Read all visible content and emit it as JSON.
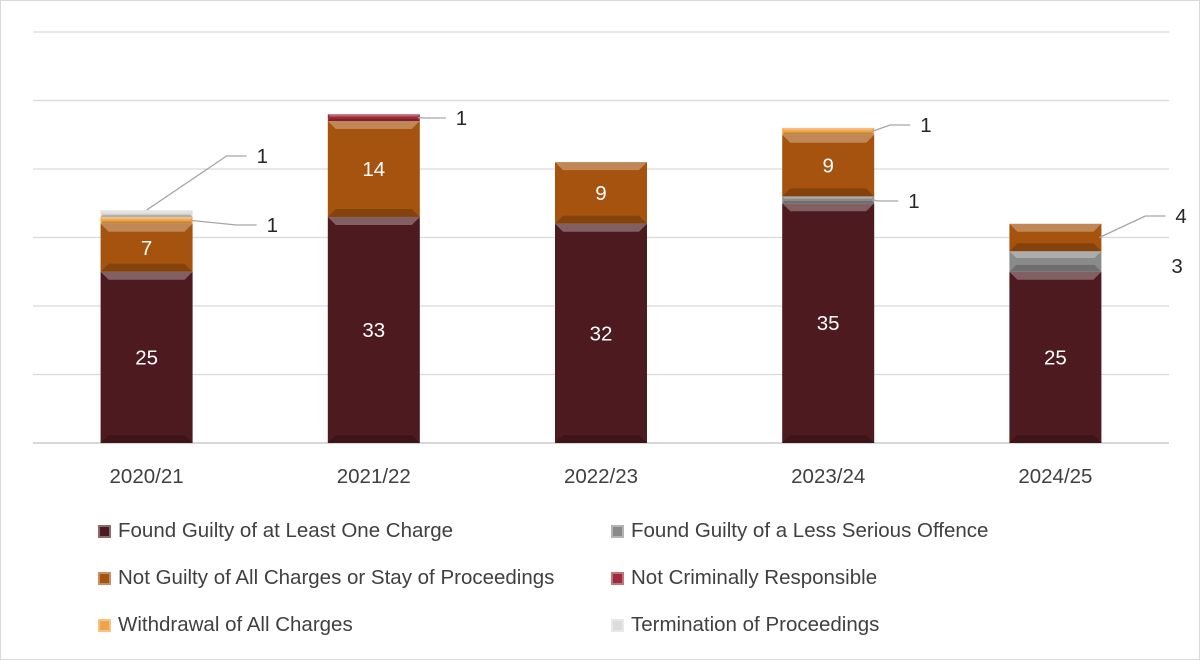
{
  "chart_data": {
    "type": "bar",
    "stacked": true,
    "categories": [
      "2020/21",
      "2021/22",
      "2022/23",
      "2023/24",
      "2024/25"
    ],
    "ylim": [
      0,
      60
    ],
    "grid": true,
    "y_tick_step": 10,
    "legend_placement": "bottom",
    "series": [
      {
        "name": "Found Guilty of at Least One Charge",
        "color": "#4d1a1f",
        "values": [
          25,
          33,
          32,
          35,
          25
        ]
      },
      {
        "name": "Found Guilty of a Less Serious Offence",
        "color": "#8a8a8a",
        "values": [
          0,
          0,
          0,
          1,
          3
        ]
      },
      {
        "name": "Not Guilty of All Charges or Stay of Proceedings",
        "color": "#a5530f",
        "values": [
          7,
          14,
          9,
          9,
          4
        ]
      },
      {
        "name": "Not Criminally Responsible",
        "color": "#9e2a3a",
        "values": [
          0,
          1,
          0,
          0,
          0
        ]
      },
      {
        "name": "Withdrawal of All Charges",
        "color": "#f0a447",
        "values": [
          1,
          0,
          0,
          1,
          0
        ]
      },
      {
        "name": "Termination of Proceedings",
        "color": "#dcdcdc",
        "values": [
          1,
          0,
          0,
          0,
          0
        ]
      }
    ],
    "legend_order": [
      0,
      1,
      2,
      3,
      4,
      5
    ]
  }
}
